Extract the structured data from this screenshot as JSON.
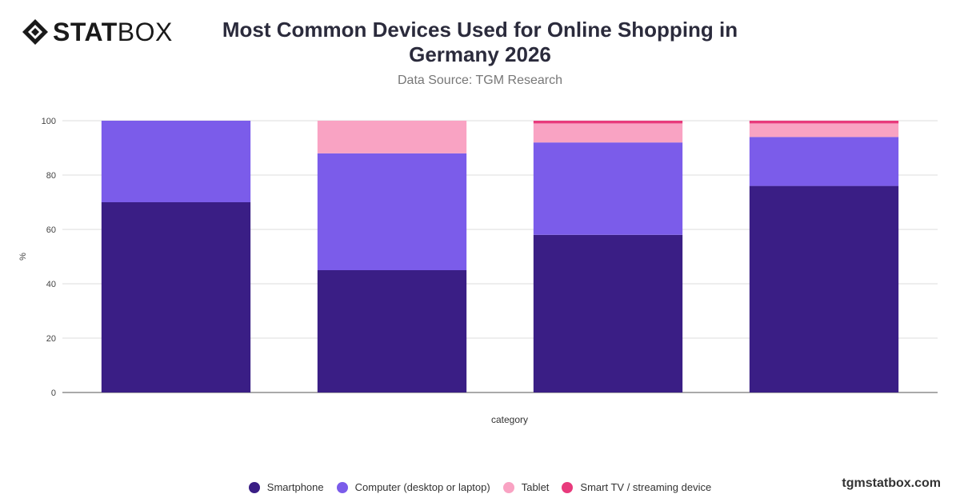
{
  "brand": {
    "logo_strong": "STAT",
    "logo_light": "BOX",
    "watermark": "tgmstatbox.com"
  },
  "colors": {
    "smartphone": "#3a1e85",
    "computer": "#7b5cea",
    "tablet": "#f9a3c3",
    "smart_tv": "#e83a7c",
    "grid": "#dddddd",
    "axis": "#555555"
  },
  "chart_data": {
    "type": "bar",
    "stacked": true,
    "title": "Most Common Devices Used for Online Shopping in Germany 2026",
    "subtitle": "Data Source: TGM Research",
    "xlabel": "category",
    "ylabel": "%",
    "ylim": [
      0,
      100
    ],
    "yticks": [
      0,
      20,
      40,
      60,
      80,
      100
    ],
    "grid": true,
    "legend": "bottom",
    "categories": [
      "",
      "",
      "",
      ""
    ],
    "series": [
      {
        "name": "Smartphone",
        "color": "#3a1e85",
        "values": [
          70,
          45,
          58,
          76
        ]
      },
      {
        "name": "Computer (desktop or laptop)",
        "color": "#7b5cea",
        "values": [
          30,
          43,
          34,
          18
        ]
      },
      {
        "name": "Tablet",
        "color": "#f9a3c3",
        "values": [
          0,
          12,
          7,
          5
        ]
      },
      {
        "name": "Smart TV / streaming device",
        "color": "#e83a7c",
        "values": [
          0,
          0,
          1,
          1
        ]
      }
    ]
  }
}
